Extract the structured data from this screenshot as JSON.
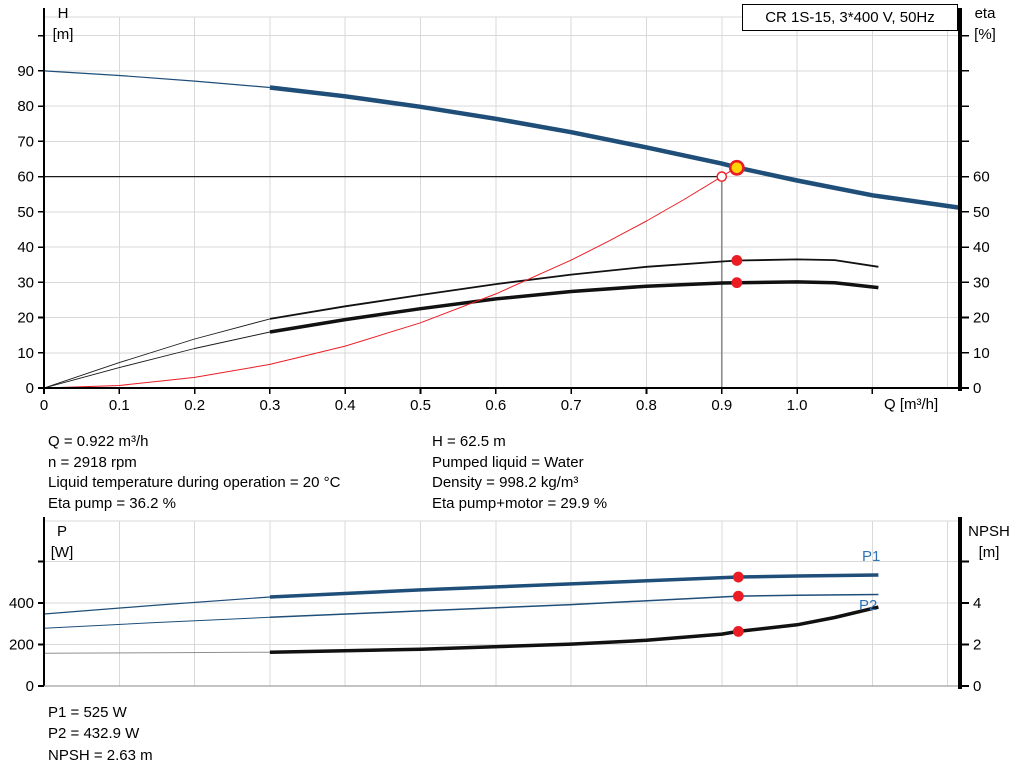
{
  "colors": {
    "blue": "#1f4e79",
    "label_blue": "#2e74b5",
    "red": "#ec1c24",
    "yellow": "#ffd400",
    "grid": "#d9d9d9",
    "gray_ref": "#8c8c8c"
  },
  "axes_labels": {
    "h": "H",
    "h_unit": "[m]",
    "eta": "eta",
    "eta_unit": "[%]",
    "q": "Q [m³/h]",
    "p": "P",
    "p_unit": "[W]",
    "npsh": "NPSH",
    "npsh_unit": "[m]"
  },
  "info": {
    "left": [
      "Q = 0.922 m³/h",
      "n = 2918 rpm",
      "Liquid temperature during operation = 20 °C",
      "Eta pump = 36.2 %"
    ],
    "right": [
      "H = 62.5 m",
      "Pumped liquid = Water",
      "Density = 998.2 kg/m³",
      "Eta pump+motor = 29.9 %"
    ],
    "bottom": [
      "P1 = 525 W",
      "P2 = 432.9 W",
      "NPSH = 2.63 m"
    ]
  },
  "chart_data": [
    {
      "type": "line",
      "title": "CR 1S-15, 3*400 V, 50Hz",
      "xlabel": "Q [m³/h]",
      "ylabel_left": "H [m]",
      "ylabel_right": "eta [%]",
      "xlim": [
        0,
        1.215
      ],
      "ylim_left": [
        0,
        105.3
      ],
      "ylim_right": [
        0,
        105.3
      ],
      "grid": true,
      "grid_x": [
        0.1,
        0.2,
        0.3,
        0.4,
        0.5,
        0.6,
        0.7,
        0.8,
        0.9,
        1.0,
        1.1,
        1.2
      ],
      "grid_y": [
        10,
        20,
        30,
        40,
        50,
        60,
        70,
        80,
        90,
        100
      ],
      "x_ticks": [
        {
          "v": 0,
          "label": "0"
        },
        {
          "v": 0.1,
          "label": "0.1"
        },
        {
          "v": 0.2,
          "label": "0.2"
        },
        {
          "v": 0.3,
          "label": "0.3"
        },
        {
          "v": 0.4,
          "label": "0.4"
        },
        {
          "v": 0.5,
          "label": "0.5"
        },
        {
          "v": 0.6,
          "label": "0.6"
        },
        {
          "v": 0.7,
          "label": "0.7"
        },
        {
          "v": 0.8,
          "label": "0.8"
        },
        {
          "v": 0.9,
          "label": "0.9"
        },
        {
          "v": 1.0,
          "label": "1.0"
        },
        {
          "v": 1.1,
          "label": ""
        }
      ],
      "y_ticks_left": [
        {
          "v": 0,
          "label": "0"
        },
        {
          "v": 10,
          "label": "10"
        },
        {
          "v": 20,
          "label": "20"
        },
        {
          "v": 30,
          "label": "30"
        },
        {
          "v": 40,
          "label": "40"
        },
        {
          "v": 50,
          "label": "50"
        },
        {
          "v": 60,
          "label": "60"
        },
        {
          "v": 70,
          "label": "70"
        },
        {
          "v": 80,
          "label": "80"
        },
        {
          "v": 90,
          "label": "90"
        },
        {
          "v": 100,
          "label": ""
        }
      ],
      "y_ticks_right": [
        {
          "v": 0,
          "label": "0"
        },
        {
          "v": 10,
          "label": "10"
        },
        {
          "v": 20,
          "label": "20"
        },
        {
          "v": 30,
          "label": "30"
        },
        {
          "v": 40,
          "label": "40"
        },
        {
          "v": 50,
          "label": "50"
        },
        {
          "v": 60,
          "label": "60"
        },
        {
          "v": 70,
          "label": ""
        },
        {
          "v": 80,
          "label": ""
        },
        {
          "v": 90,
          "label": ""
        },
        {
          "v": 100,
          "label": ""
        }
      ],
      "series": [
        {
          "name": "head-curve-lowflow",
          "axis": "left",
          "color": "#1f4e79",
          "width": 1.2,
          "x": [
            0,
            0.1,
            0.2,
            0.3
          ],
          "y": [
            90,
            88.7,
            87.1,
            85.3
          ]
        },
        {
          "name": "head-curve",
          "axis": "left",
          "color": "#1f4e79",
          "width": 4.5,
          "x": [
            0.3,
            0.4,
            0.5,
            0.6,
            0.7,
            0.8,
            0.9,
            0.922,
            1.0,
            1.1,
            1.215
          ],
          "y": [
            85.3,
            82.8,
            79.8,
            76.4,
            72.6,
            68.3,
            63.7,
            62.5,
            58.9,
            54.7,
            51.2
          ]
        },
        {
          "name": "eta-pump-lowflow",
          "axis": "left",
          "color": "#1a1a1a",
          "width": 0.9,
          "x": [
            0,
            0.1,
            0.2,
            0.3
          ],
          "y": [
            0,
            7.2,
            13.9,
            19.6
          ]
        },
        {
          "name": "eta-pump-curve",
          "axis": "left",
          "color": "#111111",
          "width": 1.8,
          "x": [
            0.3,
            0.4,
            0.5,
            0.6,
            0.7,
            0.8,
            0.9,
            0.922,
            1.0,
            1.05,
            1.108
          ],
          "y": [
            19.6,
            23.2,
            26.4,
            29.5,
            32.2,
            34.4,
            35.9,
            36.2,
            36.5,
            36.3,
            34.4
          ]
        },
        {
          "name": "eta-pump-motor-lowflow",
          "axis": "left",
          "color": "#1a1a1a",
          "width": 0.9,
          "x": [
            0,
            0.1,
            0.2,
            0.3
          ],
          "y": [
            0,
            5.8,
            11.2,
            15.9
          ]
        },
        {
          "name": "eta-pump-motor-curve",
          "axis": "left",
          "color": "#111111",
          "width": 3.5,
          "x": [
            0.3,
            0.4,
            0.5,
            0.6,
            0.7,
            0.8,
            0.9,
            0.922,
            1.0,
            1.05,
            1.108
          ],
          "y": [
            15.9,
            19.4,
            22.5,
            25.3,
            27.4,
            28.9,
            29.8,
            29.9,
            30.1,
            29.9,
            28.5
          ]
        },
        {
          "name": "system-curve",
          "axis": "left",
          "color": "#ec1c24",
          "width": 1,
          "x": [
            0,
            0.1,
            0.2,
            0.3,
            0.4,
            0.5,
            0.6,
            0.7,
            0.75,
            0.8,
            0.85,
            0.9,
            0.918
          ],
          "y": [
            0,
            0.7,
            3.0,
            6.7,
            11.9,
            18.5,
            26.7,
            36.3,
            41.7,
            47.4,
            53.5,
            60,
            62.4
          ]
        }
      ],
      "ref_lines": [
        {
          "dir": "h",
          "at": 60,
          "from": 0,
          "to": 0.894,
          "color": "#1a1a1a",
          "width": 1.3
        },
        {
          "dir": "v",
          "at": 0.9,
          "from": 0,
          "to": 60,
          "color": "#8c8c8c",
          "width": 1.6
        }
      ],
      "markers": [
        {
          "name": "duty-point",
          "x": 0.92,
          "y": 62.5,
          "axis": "left",
          "style": "duty"
        },
        {
          "name": "rated-point",
          "x": 0.9,
          "y": 60,
          "axis": "left",
          "style": "open"
        },
        {
          "name": "eta-pump-point",
          "x": 0.92,
          "y": 36.2,
          "axis": "left",
          "style": "dot"
        },
        {
          "name": "eta-pump-motor-point",
          "x": 0.92,
          "y": 29.9,
          "axis": "left",
          "style": "dot"
        }
      ]
    },
    {
      "type": "line",
      "title": "",
      "xlabel": "",
      "ylabel_left": "P [W]",
      "ylabel_right": "NPSH [m]",
      "xlim": [
        0,
        1.215
      ],
      "ylim_left": [
        0,
        795
      ],
      "ylim_right": [
        0,
        7.95
      ],
      "grid": true,
      "grid_x": [
        0.1,
        0.2,
        0.3,
        0.4,
        0.5,
        0.6,
        0.7,
        0.8,
        0.9,
        1.0,
        1.1,
        1.2
      ],
      "grid_y": [
        200,
        400,
        600
      ],
      "x_ticks": [],
      "y_ticks_left": [
        {
          "v": 0,
          "label": "0"
        },
        {
          "v": 200,
          "label": "200"
        },
        {
          "v": 400,
          "label": "400"
        },
        {
          "v": 600,
          "label": ""
        }
      ],
      "y_ticks_right": [
        {
          "v": 0,
          "label": "0"
        },
        {
          "v": 2,
          "label": "2"
        },
        {
          "v": 4,
          "label": "4"
        },
        {
          "v": 6,
          "label": ""
        }
      ],
      "series": [
        {
          "name": "p1-lowflow",
          "axis": "left",
          "color": "#1f4e79",
          "width": 1.2,
          "x": [
            0,
            0.15,
            0.3
          ],
          "y": [
            347,
            390,
            429
          ]
        },
        {
          "name": "p1-curve",
          "axis": "left",
          "color": "#1f4e79",
          "width": 3.5,
          "x": [
            0.3,
            0.5,
            0.7,
            0.922,
            1.0,
            1.108
          ],
          "y": [
            429,
            463,
            492,
            525,
            530,
            535
          ]
        },
        {
          "name": "p2-lowflow",
          "axis": "left",
          "color": "#1f4e79",
          "width": 1,
          "x": [
            0,
            0.15,
            0.3
          ],
          "y": [
            278,
            306,
            331
          ]
        },
        {
          "name": "p2-curve",
          "axis": "left",
          "color": "#1f4e79",
          "width": 1.5,
          "x": [
            0.3,
            0.5,
            0.7,
            0.922,
            1.0,
            1.108
          ],
          "y": [
            331,
            362,
            392,
            433,
            437,
            441
          ]
        },
        {
          "name": "npsh-lowflow",
          "axis": "right",
          "color": "#8f8f8f",
          "width": 1,
          "x": [
            0,
            0.15,
            0.3
          ],
          "y": [
            1.58,
            1.6,
            1.63
          ]
        },
        {
          "name": "npsh-curve",
          "axis": "right",
          "color": "#111111",
          "width": 3.5,
          "x": [
            0.3,
            0.5,
            0.7,
            0.8,
            0.9,
            0.922,
            1.0,
            1.05,
            1.108
          ],
          "y": [
            1.63,
            1.77,
            2.02,
            2.2,
            2.5,
            2.63,
            2.95,
            3.3,
            3.8
          ]
        }
      ],
      "ref_lines": [],
      "markers": [
        {
          "name": "p1-point",
          "x": 0.922,
          "y": 525,
          "axis": "left",
          "style": "dot"
        },
        {
          "name": "p2-point",
          "x": 0.922,
          "y": 432.9,
          "axis": "left",
          "style": "dot"
        },
        {
          "name": "npsh-point",
          "x": 0.922,
          "y": 2.63,
          "axis": "right",
          "style": "dot"
        }
      ],
      "annotations": [
        {
          "text": "P1"
        },
        {
          "text": "P2"
        }
      ]
    }
  ]
}
